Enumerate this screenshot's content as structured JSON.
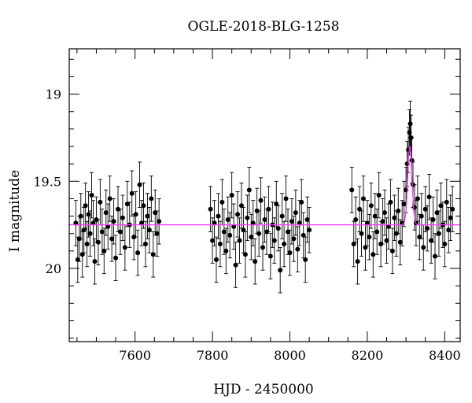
{
  "chart_data": {
    "type": "scatter",
    "title": "OGLE-2018-BLG-1258",
    "xlabel": "HJD - 2450000",
    "ylabel": "I magnitude",
    "xlim": [
      7430,
      8440
    ],
    "ylim": [
      20.42,
      18.74
    ],
    "y_inverted": true,
    "x_ticks": [
      7600,
      7800,
      8000,
      8200,
      8400
    ],
    "x_tick_labels": [
      "7600",
      "7800",
      "8000",
      "8200",
      "8400"
    ],
    "y_ticks": [
      19,
      19.5,
      20
    ],
    "y_tick_labels": [
      "19",
      "19.5",
      "20"
    ],
    "x_minor_step": 50,
    "y_minor_step": 0.1,
    "grid": false,
    "legend": "none",
    "series": [
      {
        "kind": "data",
        "marker": "filled-circle",
        "error_bars": true,
        "color": "#000000",
        "typical_error": 0.13,
        "points": [
          [
            7447,
            19.74
          ],
          [
            7452,
            19.95
          ],
          [
            7456,
            19.83
          ],
          [
            7460,
            19.7
          ],
          [
            7464,
            19.92
          ],
          [
            7468,
            19.78
          ],
          [
            7472,
            19.64
          ],
          [
            7476,
            19.86
          ],
          [
            7480,
            19.69
          ],
          [
            7484,
            19.8
          ],
          [
            7488,
            19.58
          ],
          [
            7492,
            19.74
          ],
          [
            7496,
            19.96
          ],
          [
            7500,
            19.72
          ],
          [
            7505,
            19.85
          ],
          [
            7510,
            19.62
          ],
          [
            7515,
            19.79
          ],
          [
            7520,
            19.9
          ],
          [
            7525,
            19.68
          ],
          [
            7530,
            19.76
          ],
          [
            7535,
            19.6
          ],
          [
            7540,
            19.83
          ],
          [
            7545,
            19.73
          ],
          [
            7550,
            19.94
          ],
          [
            7556,
            19.66
          ],
          [
            7562,
            19.79
          ],
          [
            7568,
            19.71
          ],
          [
            7574,
            19.88
          ],
          [
            7580,
            19.63
          ],
          [
            7586,
            19.75
          ],
          [
            7592,
            19.57
          ],
          [
            7597,
            19.82
          ],
          [
            7602,
            19.69
          ],
          [
            7607,
            19.91
          ],
          [
            7612,
            19.52
          ],
          [
            7617,
            19.74
          ],
          [
            7622,
            19.64
          ],
          [
            7627,
            19.86
          ],
          [
            7632,
            19.7
          ],
          [
            7637,
            19.78
          ],
          [
            7642,
            19.6
          ],
          [
            7647,
            19.92
          ],
          [
            7652,
            19.68
          ],
          [
            7657,
            19.8
          ],
          [
            7662,
            19.73
          ],
          [
            7795,
            19.66
          ],
          [
            7800,
            19.84
          ],
          [
            7805,
            19.74
          ],
          [
            7810,
            19.95
          ],
          [
            7815,
            19.7
          ],
          [
            7820,
            19.86
          ],
          [
            7825,
            19.62
          ],
          [
            7830,
            19.79
          ],
          [
            7835,
            19.9
          ],
          [
            7840,
            19.72
          ],
          [
            7845,
            19.81
          ],
          [
            7850,
            19.58
          ],
          [
            7855,
            19.76
          ],
          [
            7860,
            19.98
          ],
          [
            7865,
            19.69
          ],
          [
            7870,
            19.84
          ],
          [
            7875,
            19.64
          ],
          [
            7880,
            19.78
          ],
          [
            7885,
            19.92
          ],
          [
            7890,
            19.71
          ],
          [
            7895,
            19.55
          ],
          [
            7900,
            19.82
          ],
          [
            7905,
            19.74
          ],
          [
            7910,
            19.96
          ],
          [
            7915,
            19.67
          ],
          [
            7920,
            19.8
          ],
          [
            7925,
            19.61
          ],
          [
            7930,
            19.88
          ],
          [
            7935,
            19.72
          ],
          [
            7940,
            19.79
          ],
          [
            7945,
            19.66
          ],
          [
            7950,
            19.93
          ],
          [
            7955,
            19.75
          ],
          [
            7960,
            19.84
          ],
          [
            7965,
            19.63
          ],
          [
            7970,
            19.77
          ],
          [
            7975,
            20.01
          ],
          [
            7980,
            19.7
          ],
          [
            7985,
            19.86
          ],
          [
            7990,
            19.6
          ],
          [
            7995,
            19.79
          ],
          [
            8000,
            19.91
          ],
          [
            8005,
            19.73
          ],
          [
            8010,
            19.83
          ],
          [
            8015,
            19.68
          ],
          [
            8020,
            19.89
          ],
          [
            8025,
            19.74
          ],
          [
            8030,
            19.62
          ],
          [
            8035,
            19.81
          ],
          [
            8040,
            19.95
          ],
          [
            8045,
            19.72
          ],
          [
            8050,
            19.78
          ],
          [
            8160,
            19.55
          ],
          [
            8165,
            19.86
          ],
          [
            8170,
            19.72
          ],
          [
            8175,
            19.96
          ],
          [
            8180,
            19.66
          ],
          [
            8185,
            19.8
          ],
          [
            8190,
            19.6
          ],
          [
            8195,
            19.88
          ],
          [
            8200,
            19.74
          ],
          [
            8205,
            19.82
          ],
          [
            8210,
            19.64
          ],
          [
            8215,
            19.92
          ],
          [
            8220,
            19.7
          ],
          [
            8225,
            19.79
          ],
          [
            8230,
            19.58
          ],
          [
            8235,
            19.86
          ],
          [
            8240,
            19.73
          ],
          [
            8245,
            19.68
          ],
          [
            8250,
            19.84
          ],
          [
            8255,
            19.76
          ],
          [
            8260,
            19.62
          ],
          [
            8265,
            19.9
          ],
          [
            8270,
            19.71
          ],
          [
            8275,
            19.8
          ],
          [
            8280,
            19.67
          ],
          [
            8285,
            19.85
          ],
          [
            8290,
            19.74
          ],
          [
            8295,
            19.63
          ],
          [
            8300,
            19.55
          ],
          [
            8303,
            19.4
          ],
          [
            8306,
            19.32
          ],
          [
            8309,
            19.22
          ],
          [
            8311,
            19.17
          ],
          [
            8313,
            19.25
          ],
          [
            8315,
            19.38
          ],
          [
            8318,
            19.52
          ],
          [
            8322,
            19.65
          ],
          [
            8326,
            19.74
          ],
          [
            8330,
            19.6
          ],
          [
            8335,
            19.82
          ],
          [
            8340,
            19.7
          ],
          [
            8345,
            19.88
          ],
          [
            8350,
            19.66
          ],
          [
            8355,
            19.77
          ],
          [
            8360,
            19.59
          ],
          [
            8365,
            19.84
          ],
          [
            8370,
            19.72
          ],
          [
            8375,
            19.93
          ],
          [
            8380,
            19.68
          ],
          [
            8385,
            19.8
          ],
          [
            8390,
            19.64
          ],
          [
            8395,
            19.75
          ],
          [
            8400,
            19.86
          ],
          [
            8405,
            19.62
          ],
          [
            8410,
            19.78
          ],
          [
            8415,
            19.71
          ],
          [
            8420,
            19.66
          ]
        ]
      },
      {
        "kind": "model",
        "color": "#ff33ff",
        "baseline": 19.75,
        "peak_x": 8310,
        "peak_y": 19.3,
        "peak_width": 5.5,
        "x_range": [
          7430,
          8440
        ]
      }
    ]
  }
}
